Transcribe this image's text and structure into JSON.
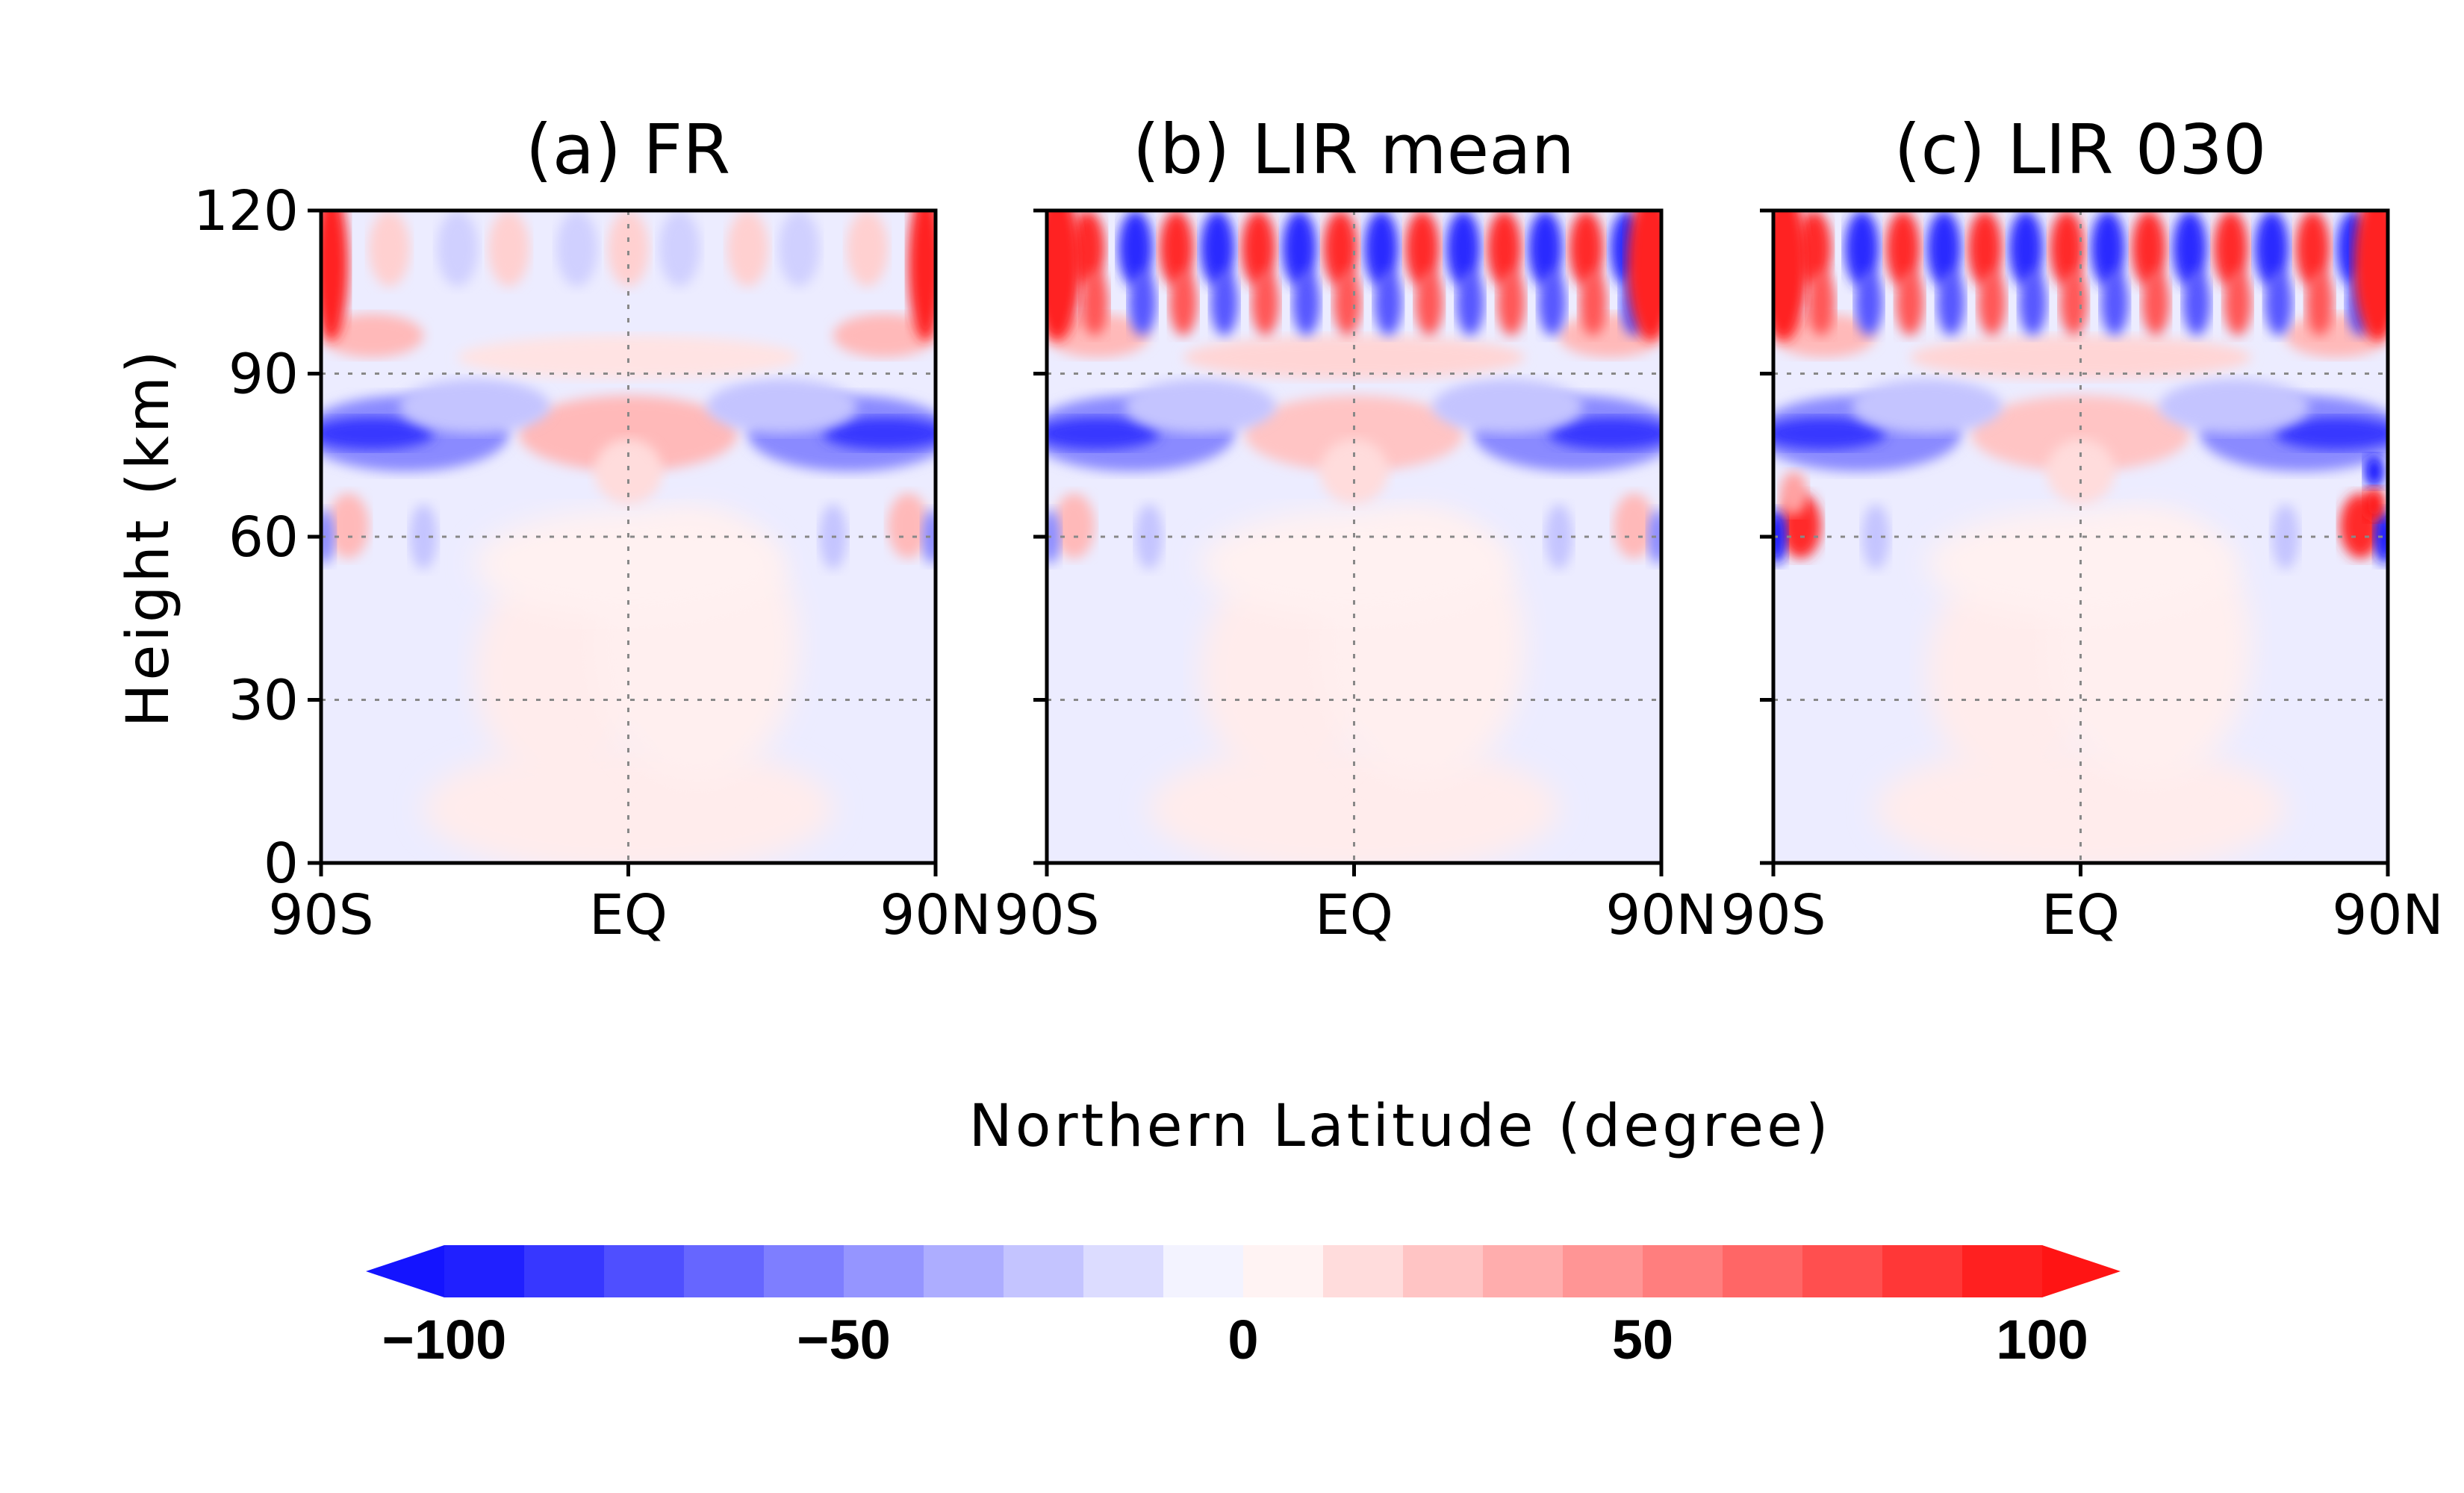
{
  "chart_data": {
    "type": "heatmap",
    "xlabel": "Northern Latitude (degree)",
    "ylabel": "Height (km)",
    "panels": [
      {
        "title": "(a) FR",
        "x_ticks": [
          "90S",
          "EQ",
          "90N"
        ],
        "y_ticks": [
          "0",
          "30",
          "60",
          "90",
          "120"
        ],
        "xlim": [
          -90,
          90
        ],
        "ylim": [
          0,
          120
        ]
      },
      {
        "title": "(b) LIR mean",
        "x_ticks": [
          "90S",
          "EQ",
          "90N"
        ],
        "y_ticks": [],
        "xlim": [
          -90,
          90
        ],
        "ylim": [
          0,
          120
        ]
      },
      {
        "title": "(c) LIR 030",
        "x_ticks": [
          "90S",
          "EQ",
          "90N"
        ],
        "y_ticks": [],
        "xlim": [
          -90,
          90
        ],
        "ylim": [
          0,
          120
        ]
      }
    ],
    "grid": {
      "x": [
        0
      ],
      "y": [
        30,
        60,
        90
      ],
      "style": "dotted"
    },
    "colorbar": {
      "min": -100,
      "max": 100,
      "step": 10,
      "extend": "both",
      "tick_labels": [
        "−100",
        "−50",
        "0",
        "50",
        "100"
      ],
      "tick_values": [
        -100,
        -50,
        0,
        50,
        100
      ]
    },
    "colors": {
      "negative": "#1414ff",
      "positive": "#ff1414",
      "neutral": "#ffffff"
    }
  }
}
